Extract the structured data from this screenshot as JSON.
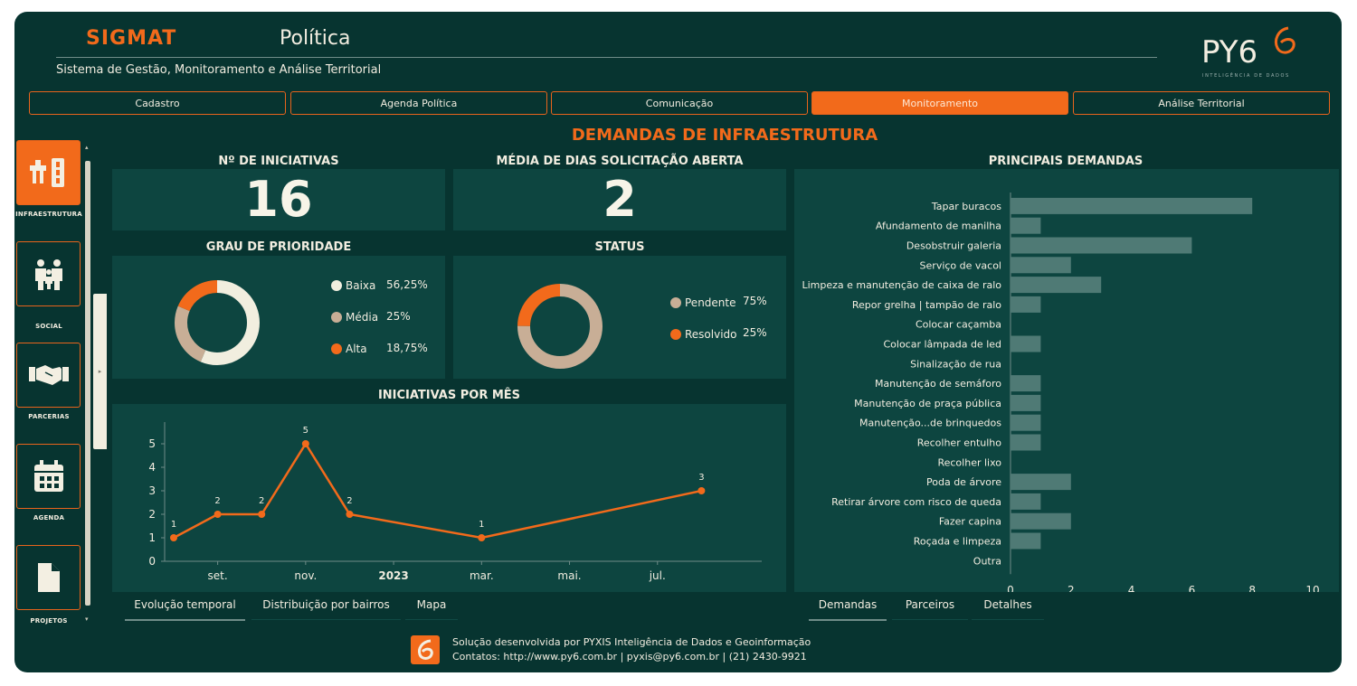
{
  "header": {
    "logo_text": "SIGMAT",
    "app_title": "Política",
    "subtitle": "Sistema de Gestão, Monitoramento e Análise Territorial",
    "brand_logo_text": "PY6",
    "brand_tagline": "INTELIGÊNCIA DE DADOS"
  },
  "tabs": [
    {
      "label": "Cadastro",
      "active": false
    },
    {
      "label": "Agenda Política",
      "active": false
    },
    {
      "label": "Comunicação",
      "active": false
    },
    {
      "label": "Monitoramento",
      "active": true
    },
    {
      "label": "Análise Territorial",
      "active": false
    }
  ],
  "sidebar": {
    "items": [
      {
        "label": "INFRAESTRUTURA",
        "icon": "infrastructure-icon",
        "active": true
      },
      {
        "label": "SOCIAL",
        "icon": "family-icon",
        "active": false
      },
      {
        "label": "PARCERIAS",
        "icon": "handshake-icon",
        "active": false
      },
      {
        "label": "AGENDA",
        "icon": "calendar-icon",
        "active": false
      },
      {
        "label": "PROJETOS",
        "icon": "document-icon",
        "active": false
      }
    ]
  },
  "page_title": "DEMANDAS DE INFRAESTRUTURA",
  "kpis": {
    "iniciativas": {
      "title": "Nº DE INICIATIVAS",
      "value": "16"
    },
    "media_dias": {
      "title": "MÉDIA DE DIAS SOLICITAÇÃO ABERTA",
      "value": "2"
    }
  },
  "prioridade": {
    "title": "GRAU DE PRIORIDADE",
    "items": [
      {
        "label": "Baixa",
        "value": "56,25%",
        "pct": 56.25,
        "color": "#f1eedf"
      },
      {
        "label": "Média",
        "value": "25%",
        "pct": 25,
        "color": "#c8ae96"
      },
      {
        "label": "Alta",
        "value": "18,75%",
        "pct": 18.75,
        "color": "#f26a1b"
      }
    ]
  },
  "status": {
    "title": "STATUS",
    "items": [
      {
        "label": "Pendente",
        "value": "75%",
        "pct": 75,
        "color": "#c8ae96"
      },
      {
        "label": "Resolvido",
        "value": "25%",
        "pct": 25,
        "color": "#f26a1b"
      }
    ]
  },
  "chart_data": [
    {
      "type": "line",
      "title": "INICIATIVAS POR MÊS",
      "x": [
        "2022-08",
        "2022-09",
        "2022-10",
        "2022-11",
        "2022-12",
        "2023-03",
        "2023-08"
      ],
      "values": [
        1,
        2,
        2,
        5,
        2,
        1,
        3
      ],
      "x_ticks": [
        "set.",
        "nov.",
        "2023",
        "mar.",
        "mai.",
        "jul."
      ],
      "ylim": [
        0,
        5
      ],
      "y_ticks": [
        0,
        1,
        2,
        3,
        4,
        5
      ],
      "color": "#f26a1b"
    },
    {
      "type": "bar",
      "orientation": "horizontal",
      "title": "PRINCIPAIS DEMANDAS",
      "categories": [
        "Tapar buracos",
        "Afundamento de manilha",
        "Desobstruir galeria",
        "Serviço de vacol",
        "Limpeza e manutenção de caixa de ralo",
        "Repor grelha | tampão de ralo",
        "Colocar caçamba",
        "Colocar lâmpada de led",
        "Sinalização de rua",
        "Manutenção de semáforo",
        "Manutenção de praça pública",
        "Manutenção...de brinquedos",
        "Recolher entulho",
        "Recolher lixo",
        "Poda de árvore",
        "Retirar árvore com risco de queda",
        "Fazer capina",
        "Roçada e limpeza",
        "Outra"
      ],
      "values": [
        8,
        1,
        6,
        2,
        3,
        1,
        0,
        1,
        0,
        1,
        1,
        1,
        1,
        0,
        2,
        1,
        2,
        1,
        0
      ],
      "xlim": [
        0,
        10
      ],
      "x_ticks": [
        0,
        2,
        4,
        6,
        8,
        10
      ],
      "color": "#4f7a75"
    }
  ],
  "bottom_tabs_left": [
    {
      "label": "Evolução temporal",
      "selected": true
    },
    {
      "label": "Distribuição por bairros",
      "selected": false
    },
    {
      "label": "Mapa",
      "selected": false
    }
  ],
  "bottom_tabs_right": [
    {
      "label": "Demandas",
      "selected": true
    },
    {
      "label": "Parceiros",
      "selected": false
    },
    {
      "label": "Detalhes",
      "selected": false
    }
  ],
  "footer": {
    "line1": "Solução desenvolvida por  PYXIS Inteligência de Dados e Geoinformação",
    "line2": "Contatos: http://www.py6.com.br | pyxis@py6.com.br |  (21) 2430-9921"
  }
}
